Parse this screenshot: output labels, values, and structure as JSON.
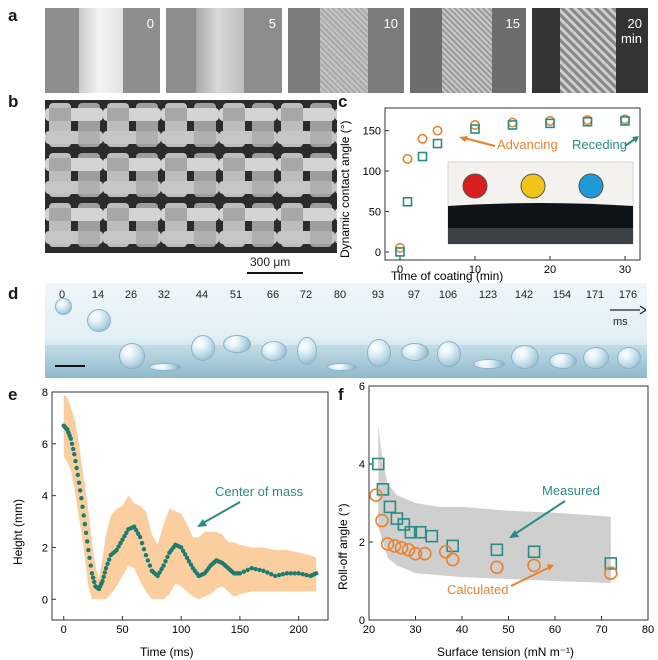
{
  "panel_labels": {
    "a": "a",
    "b": "b",
    "c": "c",
    "d": "d",
    "e": "e",
    "f": "f"
  },
  "panel_a": {
    "tiles": [
      {
        "label": "0"
      },
      {
        "label": "5"
      },
      {
        "label": "10"
      },
      {
        "label": "15"
      },
      {
        "label": "20\nmin"
      }
    ]
  },
  "panel_b": {
    "scale_label": "300 μm"
  },
  "panel_d": {
    "time_labels": [
      "0",
      "14",
      "26",
      "32",
      "44",
      "51",
      "66",
      "72",
      "80",
      "93",
      "97",
      "106",
      "123",
      "142",
      "154",
      "171",
      "176"
    ],
    "unit": "ms"
  },
  "chart_data": [
    {
      "panel": "c",
      "type": "scatter",
      "xlabel": "Time of coating (min)",
      "ylabel": "Dynamic contact angle (°)",
      "xlim": [
        -2,
        32
      ],
      "ylim": [
        -10,
        178
      ],
      "xticks": [
        0,
        10,
        20,
        30
      ],
      "yticks": [
        0,
        50,
        100,
        150
      ],
      "series": [
        {
          "name": "Advancing",
          "marker": "circle",
          "color": "#e8822f",
          "x": [
            0,
            1,
            3,
            5,
            10,
            15,
            20,
            25,
            30
          ],
          "y": [
            5,
            115,
            140,
            150,
            157,
            160,
            162,
            163,
            164
          ]
        },
        {
          "name": "Receding",
          "marker": "square",
          "color": "#2a8a86",
          "x": [
            0,
            1,
            3,
            5,
            10,
            15,
            20,
            25,
            30
          ],
          "y": [
            0,
            62,
            118,
            134,
            152,
            157,
            159,
            161,
            162
          ]
        }
      ],
      "annotations": [
        "Advancing",
        "Receding"
      ],
      "droplet_colors": [
        "#d81e1e",
        "#f0c419",
        "#1f9ad6"
      ]
    },
    {
      "panel": "e",
      "type": "line",
      "xlabel": "Time (ms)",
      "ylabel": "Height (mm)",
      "xlim": [
        -10,
        225
      ],
      "ylim": [
        -0.8,
        8
      ],
      "xticks": [
        0,
        50,
        100,
        150,
        200
      ],
      "yticks": [
        0,
        2,
        4,
        6,
        8
      ],
      "series": [
        {
          "name": "Center of mass",
          "color": "#1d7c70",
          "x": [
            0,
            3,
            6,
            9,
            12,
            15,
            18,
            21,
            24,
            27,
            30,
            33,
            36,
            40,
            45,
            50,
            55,
            60,
            65,
            70,
            75,
            80,
            85,
            90,
            95,
            100,
            105,
            110,
            115,
            120,
            125,
            130,
            135,
            140,
            145,
            150,
            160,
            170,
            180,
            190,
            200,
            210,
            215
          ],
          "y": [
            6.7,
            6.55,
            6.2,
            5.6,
            4.8,
            3.9,
            2.9,
            1.9,
            1.0,
            0.5,
            0.4,
            0.7,
            1.2,
            1.7,
            1.9,
            2.3,
            2.7,
            2.8,
            2.4,
            1.7,
            1.1,
            0.9,
            1.3,
            1.8,
            2.1,
            2.0,
            1.6,
            1.2,
            0.9,
            1.0,
            1.3,
            1.5,
            1.4,
            1.2,
            1.0,
            1.0,
            1.2,
            1.1,
            0.9,
            1.0,
            1.0,
            0.9,
            1.0
          ]
        }
      ],
      "band": {
        "upper": [
          7.9,
          7.8,
          7.4,
          7.0,
          6.3,
          5.3,
          4.4,
          3.4,
          2.2,
          1.3,
          0.8,
          1.6,
          2.5,
          3.2,
          3.5,
          3.6,
          4.0,
          3.7,
          3.6,
          3.4,
          2.5,
          2.1,
          2.9,
          3.5,
          3.4,
          3.3,
          2.9,
          2.4,
          2.4,
          2.6,
          2.6,
          2.6,
          2.5,
          2.2,
          2.2,
          2.1,
          2.0,
          2.0,
          1.9,
          1.9,
          1.8,
          1.7,
          1.6
        ],
        "lower": [
          5.5,
          5.3,
          5.0,
          4.3,
          3.4,
          2.6,
          1.6,
          0.5,
          0.0,
          0.0,
          0.0,
          0.0,
          0.0,
          0.2,
          0.5,
          0.9,
          1.3,
          1.2,
          0.7,
          0.3,
          0.0,
          0.0,
          0.0,
          0.2,
          0.6,
          0.5,
          0.3,
          0.1,
          0.0,
          0.1,
          0.2,
          0.4,
          0.5,
          0.3,
          0.1,
          0.2,
          0.3,
          0.3,
          0.3,
          0.3,
          0.3,
          0.3,
          0.3
        ],
        "color": "#f9c994"
      },
      "annotation": "Center of mass"
    },
    {
      "panel": "f",
      "type": "scatter",
      "xlabel": "Surface tension (mN m⁻¹)",
      "ylabel": "Roll-off angle (°)",
      "xlim": [
        20,
        80
      ],
      "ylim": [
        0,
        6
      ],
      "xticks": [
        20,
        30,
        40,
        50,
        60,
        70,
        80
      ],
      "yticks": [
        0,
        2,
        4,
        6
      ],
      "series": [
        {
          "name": "Measured",
          "marker": "square",
          "color": "#2a8a86",
          "x": [
            22,
            23,
            24.5,
            26,
            27.5,
            29,
            31,
            33.5,
            38,
            47.5,
            55.5,
            72
          ],
          "y": [
            4.0,
            3.35,
            2.9,
            2.6,
            2.45,
            2.25,
            2.25,
            2.15,
            1.9,
            1.8,
            1.75,
            1.45
          ]
        },
        {
          "name": "Calculated",
          "marker": "circle",
          "color": "#e8822f",
          "x": [
            21.5,
            22.8,
            24,
            25.5,
            27,
            28.5,
            30,
            32,
            36.5,
            38,
            47.5,
            55.5,
            72
          ],
          "y": [
            3.2,
            2.55,
            1.95,
            1.9,
            1.85,
            1.8,
            1.7,
            1.7,
            1.75,
            1.55,
            1.35,
            1.4,
            1.2
          ]
        }
      ],
      "band": {
        "x": [
          22,
          23,
          24,
          26,
          28,
          30,
          35,
          40,
          50,
          60,
          72
        ],
        "upper": [
          5.0,
          4.0,
          3.5,
          3.2,
          3.1,
          3.0,
          2.9,
          2.9,
          2.8,
          2.75,
          2.65
        ],
        "lower": [
          2.4,
          2.0,
          1.6,
          1.4,
          1.3,
          1.2,
          1.15,
          1.1,
          1.05,
          1.0,
          0.95
        ],
        "color": "#cfcfcf"
      },
      "annotations": [
        "Measured",
        "Calculated"
      ]
    }
  ]
}
